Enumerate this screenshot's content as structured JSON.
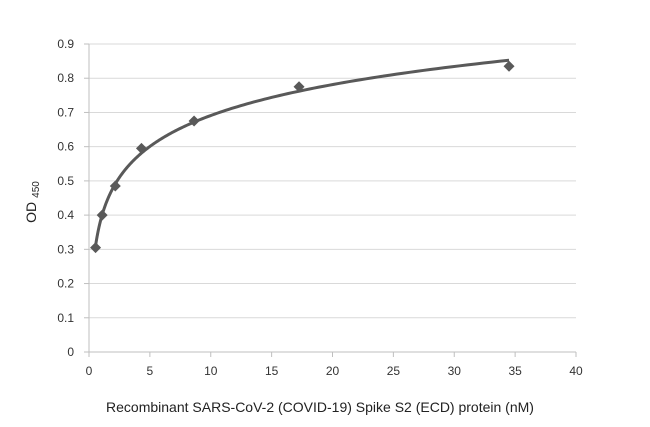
{
  "chart_data": {
    "type": "scatter",
    "title": "",
    "xlabel": "Recombinant SARS-CoV-2 (COVID-19) Spike S2 (ECD) protein (nM)",
    "ylabel": "OD",
    "ylabel_subscript": "450",
    "xlim": [
      0,
      40
    ],
    "ylim": [
      0,
      0.9
    ],
    "xticks": [
      "0",
      "5",
      "10",
      "15",
      "20",
      "25",
      "30",
      "35",
      "40"
    ],
    "yticks": [
      "0",
      "0.1",
      "0.2",
      "0.3",
      "0.4",
      "0.5",
      "0.6",
      "0.7",
      "0.8",
      "0.9"
    ],
    "grid": true,
    "legend": "none",
    "series": [
      {
        "marker": "diamond",
        "trendline": "logarithmic",
        "x": [
          0.54,
          1.08,
          2.16,
          4.31,
          8.63,
          17.25,
          34.5
        ],
        "y": [
          0.305,
          0.4,
          0.485,
          0.595,
          0.675,
          0.775,
          0.835
        ]
      }
    ],
    "colors": {
      "series": "#595959",
      "grid": "#d9d9d9",
      "axis": "#bfbfbf"
    }
  }
}
